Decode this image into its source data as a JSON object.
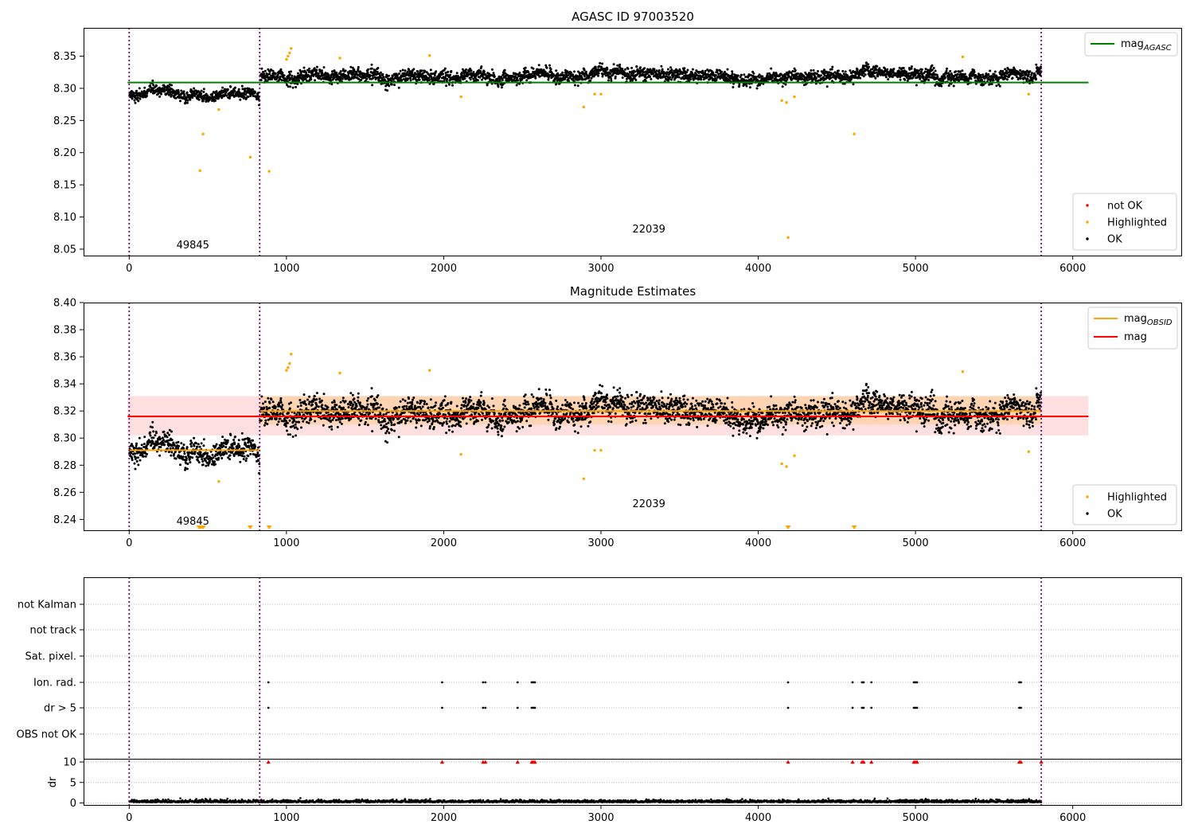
{
  "chart_data": [
    {
      "type": "scatter",
      "title": "AGASC ID 97003520",
      "xlim": [
        -290,
        6690
      ],
      "ylim": [
        8.04,
        8.394
      ],
      "xticks": [
        0,
        1000,
        2000,
        3000,
        4000,
        5000,
        6000
      ],
      "yticks": [
        8.05,
        8.1,
        8.15,
        8.2,
        8.25,
        8.3,
        8.35
      ],
      "ytick_decimals": 2,
      "obsid_boundaries": [
        0,
        830,
        5800
      ],
      "obsid_labels": [
        {
          "x": 300,
          "y": 8.051,
          "text": "49845"
        },
        {
          "x": 3200,
          "y": 8.076,
          "text": "22039"
        }
      ],
      "segments": [
        {
          "x0": 0,
          "x1": 830,
          "mean": 8.29,
          "spread": 0.009
        },
        {
          "x0": 830,
          "x1": 5800,
          "mean": 8.32,
          "spread": 0.011
        }
      ],
      "lines": [
        {
          "name": "mag_AGASC",
          "x0": -10,
          "x1": 6100,
          "y": 8.309,
          "color": "#008000"
        }
      ],
      "highlighted_points": [
        [
          450,
          8.172
        ],
        [
          470,
          8.229
        ],
        [
          570,
          8.267
        ],
        [
          770,
          8.193
        ],
        [
          890,
          8.171
        ],
        [
          1000,
          8.345
        ],
        [
          1010,
          8.35
        ],
        [
          1020,
          8.355
        ],
        [
          1030,
          8.362
        ],
        [
          1340,
          8.347
        ],
        [
          1910,
          8.351
        ],
        [
          2110,
          8.287
        ],
        [
          2890,
          8.271
        ],
        [
          2960,
          8.291
        ],
        [
          3000,
          8.291
        ],
        [
          4150,
          8.281
        ],
        [
          4180,
          8.278
        ],
        [
          4190,
          8.068
        ],
        [
          4230,
          8.287
        ],
        [
          4610,
          8.229
        ],
        [
          5300,
          8.349
        ],
        [
          5720,
          8.291
        ]
      ],
      "legend_series": [
        {
          "name": "not OK",
          "color": "#ff0000"
        },
        {
          "name": "Highlighted",
          "color": "#ffa500"
        },
        {
          "name": "OK",
          "color": "#000000"
        }
      ],
      "line_legend": [
        {
          "name": "mag",
          "sub": "AGASC",
          "color": "#008000"
        }
      ]
    },
    {
      "type": "scatter",
      "title": "Magnitude Estimates",
      "xlim": [
        -290,
        6690
      ],
      "ylim": [
        8.232,
        8.4
      ],
      "xticks": [
        0,
        1000,
        2000,
        3000,
        4000,
        5000,
        6000
      ],
      "yticks": [
        8.24,
        8.26,
        8.28,
        8.3,
        8.32,
        8.34,
        8.36,
        8.38,
        8.4
      ],
      "ytick_decimals": 2,
      "obsid_boundaries": [
        0,
        830,
        5800
      ],
      "obsid_labels": [
        {
          "x": 300,
          "y": 8.236,
          "text": "49845"
        },
        {
          "x": 3200,
          "y": 8.249,
          "text": "22039"
        }
      ],
      "segments": [
        {
          "x0": 0,
          "x1": 830,
          "mean": 8.29,
          "spread": 0.009
        },
        {
          "x0": 830,
          "x1": 5800,
          "mean": 8.32,
          "spread": 0.011
        }
      ],
      "bands": [
        {
          "x0": -10,
          "x1": 6100,
          "y0": 8.302,
          "y1": 8.331,
          "color": "#ff0000",
          "opacity": 0.12
        },
        {
          "x0": 830,
          "x1": 5800,
          "y0": 8.31,
          "y1": 8.331,
          "color": "#ffa500",
          "opacity": 0.2
        }
      ],
      "lines": [
        {
          "name": "mag_OBSID",
          "x0": 0,
          "x1": 830,
          "y": 8.291,
          "color": "#ffa500"
        },
        {
          "name": "mag_OBSID",
          "x0": 830,
          "x1": 5800,
          "y": 8.32,
          "color": "#ffa500"
        },
        {
          "name": "mag",
          "x0": -10,
          "x1": 6100,
          "y": 8.316,
          "color": "#ff0000"
        }
      ],
      "highlighted_points": [
        [
          570,
          8.268
        ],
        [
          1000,
          8.35
        ],
        [
          1010,
          8.352
        ],
        [
          1020,
          8.355
        ],
        [
          1030,
          8.362
        ],
        [
          1340,
          8.348
        ],
        [
          1910,
          8.35
        ],
        [
          2110,
          8.288
        ],
        [
          2890,
          8.27
        ],
        [
          2960,
          8.291
        ],
        [
          3000,
          8.291
        ],
        [
          4150,
          8.281
        ],
        [
          4180,
          8.279
        ],
        [
          4230,
          8.287
        ],
        [
          5300,
          8.349
        ],
        [
          5720,
          8.29
        ]
      ],
      "clipped_points": [
        445,
        455,
        470,
        770,
        890,
        4190,
        4610
      ],
      "legend_series": [
        {
          "name": "Highlighted",
          "color": "#ffa500"
        },
        {
          "name": "OK",
          "color": "#000000"
        }
      ],
      "line_legend": [
        {
          "name": "mag",
          "sub": "OBSID",
          "color": "#ffa500"
        },
        {
          "name": "mag",
          "sub": "",
          "color": "#ff0000"
        }
      ]
    },
    {
      "type": "scatter",
      "title": "",
      "xlim": [
        -290,
        6690
      ],
      "obsid_boundaries": [
        0,
        830,
        5800
      ],
      "flag_rows": [
        "not Kalman",
        "not track",
        "Sat. pixel.",
        "Ion. rad.",
        "dr > 5",
        "OBS not OK"
      ],
      "flag_events": {
        "Ion. rad.": [
          885,
          1990,
          2250,
          2265,
          2470,
          2560,
          2570,
          2580,
          4190,
          4600,
          4660,
          4670,
          4720,
          4990,
          5000,
          5010,
          5660,
          5670
        ],
        "dr > 5": [
          885,
          1990,
          2250,
          2265,
          2470,
          2560,
          2570,
          2580,
          4190,
          4600,
          4660,
          4670,
          4720,
          4990,
          5000,
          5010,
          5660,
          5670
        ]
      },
      "dr": {
        "ylabel": "dr",
        "ylim": [
          -0.5,
          10.6
        ],
        "yticks": [
          0,
          5,
          10
        ],
        "clipped_events": [
          885,
          1990,
          2250,
          2265,
          2470,
          2560,
          2570,
          2580,
          4190,
          4600,
          4660,
          4670,
          4720,
          4990,
          5000,
          5010,
          5660,
          5670,
          5800
        ]
      },
      "xticks": [
        0,
        1000,
        2000,
        3000,
        4000,
        5000,
        6000
      ]
    }
  ]
}
